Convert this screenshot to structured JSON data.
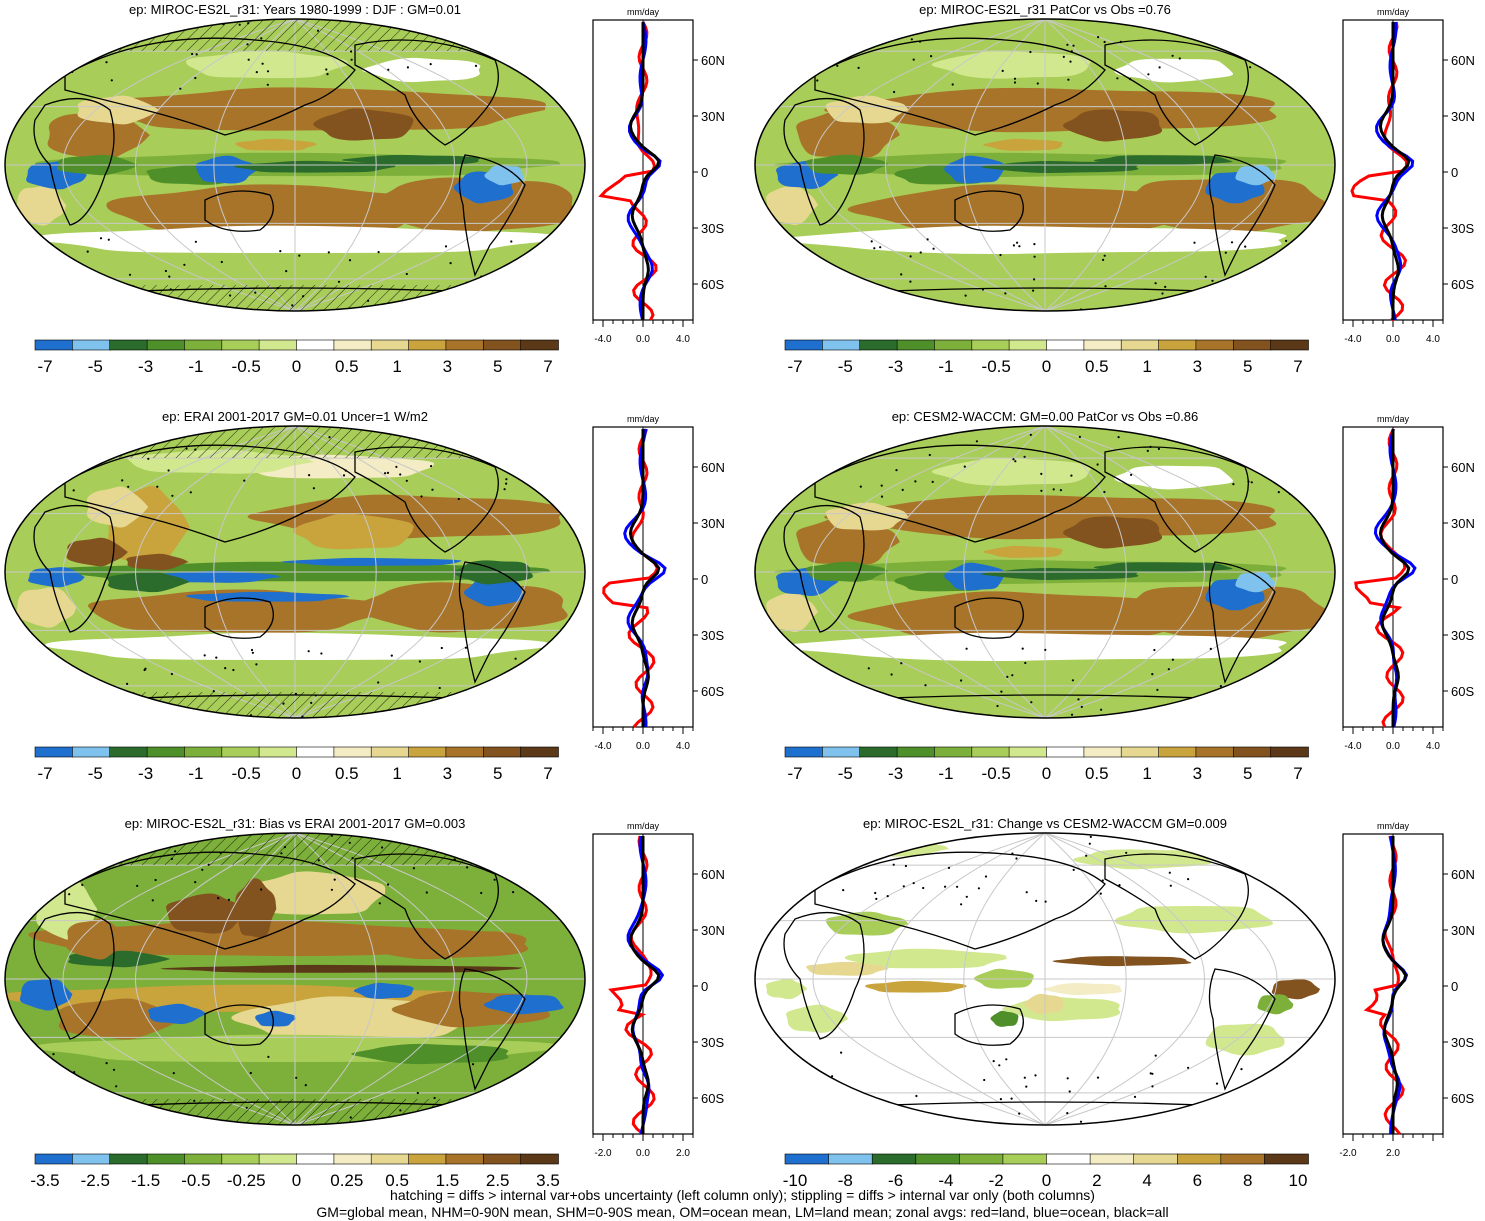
{
  "colors": {
    "palette_14": [
      "#1f6fcf",
      "#7fc2ee",
      "#2b6b2b",
      "#4e8f2a",
      "#7db03a",
      "#a8cd58",
      "#d2e88f",
      "#ffffff",
      "#f3ecc4",
      "#e6d891",
      "#c9a33c",
      "#a8742a",
      "#82521f",
      "#5a3818"
    ],
    "palette_12": [
      "#1f6fcf",
      "#7fc2ee",
      "#2b6b2b",
      "#4e8f2a",
      "#7db03a",
      "#a8cd58",
      "#ffffff",
      "#f3ecc4",
      "#e6d891",
      "#c9a33c",
      "#a8742a",
      "#5a3818"
    ],
    "land": "#000000",
    "grid": "#c8c8c8",
    "zonal_land": "#ff0000",
    "zonal_ocean": "#0000ff",
    "zonal_all": "#000000"
  },
  "panels": [
    {
      "id": "p1",
      "title": "ep: MIROC-ES2L_r31: Years 1980-1999 : DJF : GM=0.01",
      "map_style": "mean",
      "hatching": true,
      "colorbar_labels": [
        "-7",
        "-5",
        "-3",
        "-1",
        "-0.5",
        "0",
        "0.5",
        "1",
        "3",
        "5",
        "7"
      ],
      "zonal_unit": "mm/day",
      "zonal_ticks": [
        "-4.0",
        "0.0",
        "4.0"
      ],
      "lat_labels": [
        "60N",
        "30N",
        "0",
        "30S",
        "60S"
      ]
    },
    {
      "id": "p2",
      "title": "ep: MIROC-ES2L_r31 PatCor vs Obs =0.76",
      "map_style": "mean",
      "hatching": false,
      "colorbar_labels": [
        "-7",
        "-5",
        "-3",
        "-1",
        "-0.5",
        "0",
        "0.5",
        "1",
        "3",
        "5",
        "7"
      ],
      "zonal_unit": "mm/day",
      "zonal_ticks": [
        "-4.0",
        "0.0",
        "4.0"
      ],
      "lat_labels": [
        "60N",
        "30N",
        "0",
        "30S",
        "60S"
      ]
    },
    {
      "id": "p3",
      "title": "ep: ERAI 2001-2017 GM=0.01 Uncer=1 W/m2",
      "map_style": "obs",
      "hatching": true,
      "colorbar_labels": [
        "-7",
        "-5",
        "-3",
        "-1",
        "-0.5",
        "0",
        "0.5",
        "1",
        "3",
        "5",
        "7"
      ],
      "zonal_unit": "mm/day",
      "zonal_ticks": [
        "-4.0",
        "0.0",
        "4.0"
      ],
      "lat_labels": [
        "60N",
        "30N",
        "0",
        "30S",
        "60S"
      ]
    },
    {
      "id": "p4",
      "title": "ep: CESM2-WACCM: GM=0.00 PatCor vs Obs =0.86",
      "map_style": "mean",
      "hatching": false,
      "colorbar_labels": [
        "-7",
        "-5",
        "-3",
        "-1",
        "-0.5",
        "0",
        "0.5",
        "1",
        "3",
        "5",
        "7"
      ],
      "zonal_unit": "mm/day",
      "zonal_ticks": [
        "-4.0",
        "0.0",
        "4.0"
      ],
      "lat_labels": [
        "60N",
        "30N",
        "0",
        "30S",
        "60S"
      ]
    },
    {
      "id": "p5",
      "title": "ep: MIROC-ES2L_r31: Bias vs ERAI 2001-2017 GM=0.003",
      "map_style": "bias",
      "hatching": true,
      "colorbar_labels": [
        "-3.5",
        "-2.5",
        "-1.5",
        "-0.5",
        "-0.25",
        "0",
        "0.25",
        "0.5",
        "1.5",
        "2.5",
        "3.5"
      ],
      "zonal_unit": "mm/day",
      "zonal_ticks": [
        "-2.0",
        "0.0",
        "2.0"
      ],
      "lat_labels": [
        "60N",
        "30N",
        "0",
        "30S",
        "60S"
      ]
    },
    {
      "id": "p6",
      "title": "ep: MIROC-ES2L_r31: Change vs CESM2-WACCM GM=0.009",
      "map_style": "change",
      "hatching": false,
      "colorbar_labels": [
        "-10",
        "-8",
        "-6",
        "-4",
        "-2",
        "0",
        "2",
        "4",
        "6",
        "8",
        "10"
      ],
      "zonal_unit": "mm/day",
      "zonal_ticks": [
        "-2.0",
        "2.0"
      ],
      "lat_labels": [
        "60N",
        "30N",
        "0",
        "30S",
        "60S"
      ]
    }
  ],
  "footer": {
    "line1": "hatching = diffs > internal var+obs uncertainty (left column only); stippling = diffs > internal var only (both columns)",
    "line2": "GM=global mean, NHM=0-90N mean, SHM=0-90S mean, OM=ocean mean, LM=land mean; zonal avgs: red=land, blue=ocean, black=all"
  }
}
